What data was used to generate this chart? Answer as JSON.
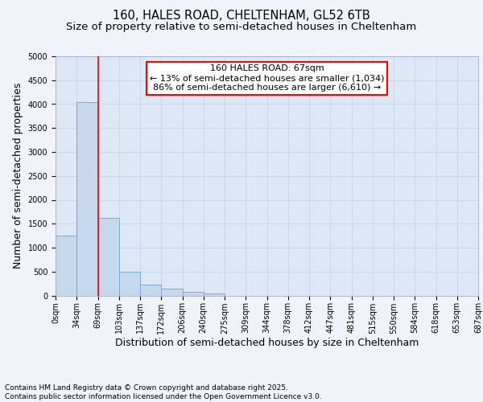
{
  "title_line1": "160, HALES ROAD, CHELTENHAM, GL52 6TB",
  "title_line2": "Size of property relative to semi-detached houses in Cheltenham",
  "xlabel": "Distribution of semi-detached houses by size in Cheltenham",
  "ylabel": "Number of semi-detached properties",
  "bin_labels": [
    "0sqm",
    "34sqm",
    "69sqm",
    "103sqm",
    "137sqm",
    "172sqm",
    "206sqm",
    "240sqm",
    "275sqm",
    "309sqm",
    "344sqm",
    "378sqm",
    "412sqm",
    "447sqm",
    "481sqm",
    "515sqm",
    "550sqm",
    "584sqm",
    "618sqm",
    "653sqm",
    "687sqm"
  ],
  "bar_heights": [
    1250,
    4050,
    1630,
    490,
    230,
    140,
    80,
    50,
    0,
    0,
    0,
    0,
    0,
    0,
    0,
    0,
    0,
    0,
    0,
    0
  ],
  "bar_color": "#c5d8ee",
  "bar_edge_color": "#7aaad0",
  "grid_color": "#c8d8ea",
  "background_color": "#dce8f5",
  "fig_background": "#f0f4fa",
  "ylim": [
    0,
    5000
  ],
  "yticks": [
    0,
    500,
    1000,
    1500,
    2000,
    2500,
    3000,
    3500,
    4000,
    4500,
    5000
  ],
  "property_line_x": 2.0,
  "annotation_text_line1": "160 HALES ROAD: 67sqm",
  "annotation_text_line2": "← 13% of semi-detached houses are smaller (1,034)",
  "annotation_text_line3": "86% of semi-detached houses are larger (6,610) →",
  "annotation_box_color": "white",
  "annotation_box_edge": "red",
  "property_line_color": "red",
  "footer_line1": "Contains HM Land Registry data © Crown copyright and database right 2025.",
  "footer_line2": "Contains public sector information licensed under the Open Government Licence v3.0.",
  "title_fontsize": 10.5,
  "subtitle_fontsize": 9.5,
  "axis_label_fontsize": 9,
  "tick_fontsize": 7,
  "annotation_fontsize": 8,
  "footer_fontsize": 6.5
}
